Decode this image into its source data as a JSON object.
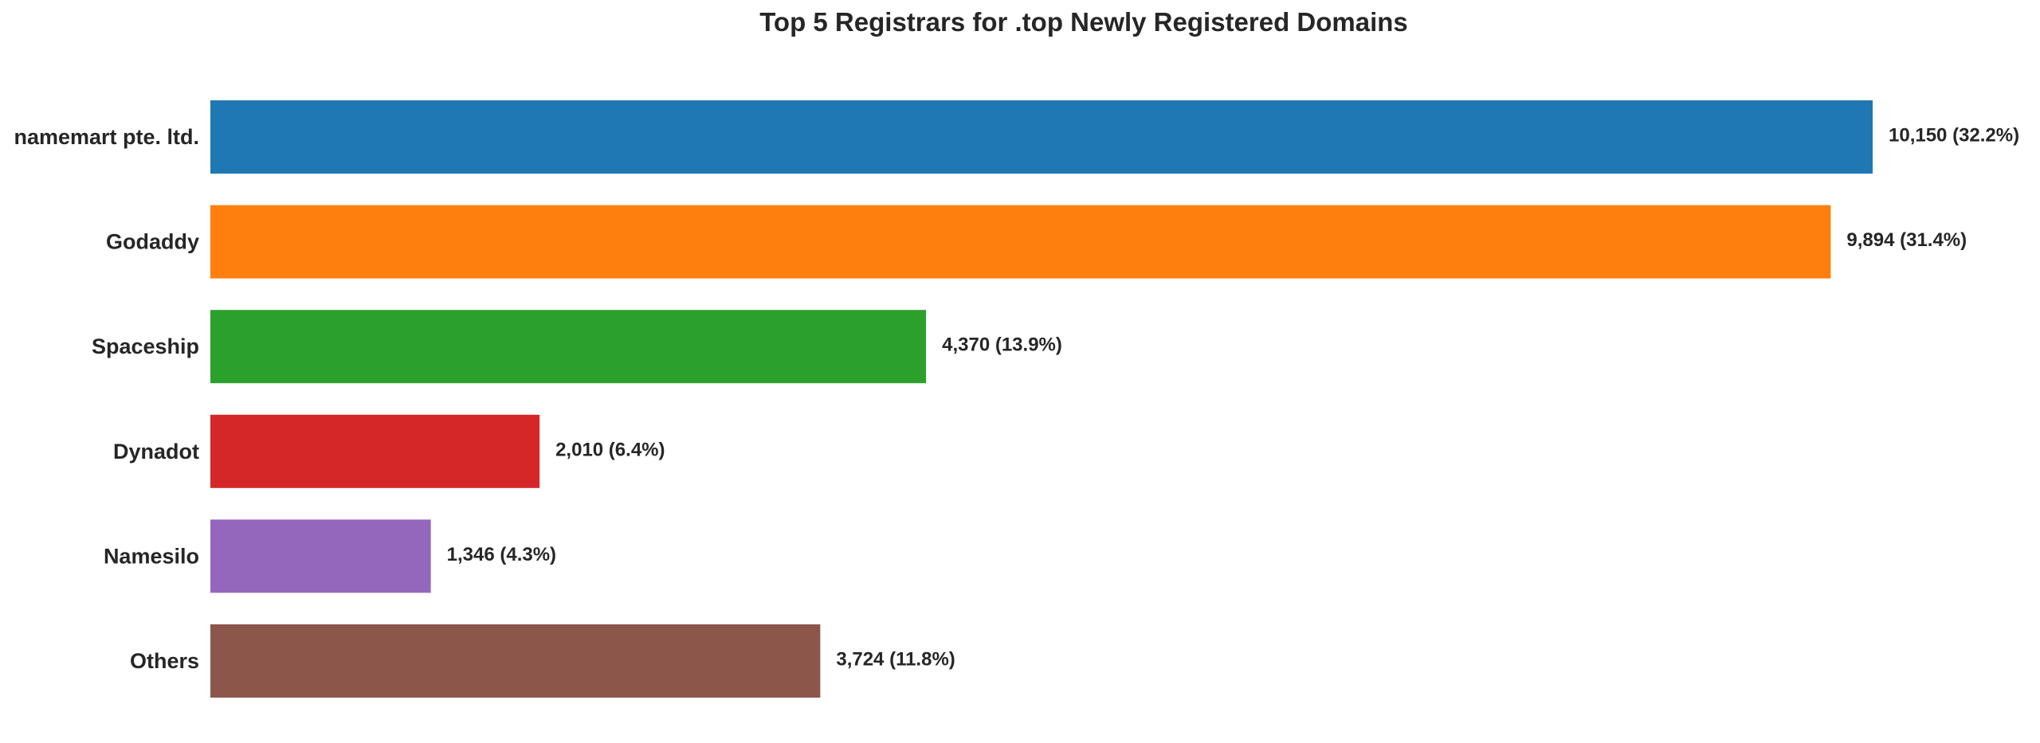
{
  "chart_data": {
    "type": "bar",
    "orientation": "horizontal",
    "title": "Top 5 Registrars for .top Newly Registered Domains",
    "xlabel": "",
    "ylabel": "",
    "categories": [
      "namemart pte. ltd.",
      "Godaddy",
      "Spaceship",
      "Dynadot",
      "Namesilo",
      "Others"
    ],
    "values": [
      10150,
      9894,
      4370,
      2010,
      1346,
      3724
    ],
    "percentages": [
      32.2,
      31.4,
      13.9,
      6.4,
      4.3,
      11.8
    ],
    "data_labels": [
      "10,150 (32.2%)",
      "9,894 (31.4%)",
      "4,370 (13.9%)",
      "2,010 (6.4%)",
      "1,346 (4.3%)",
      "3,724 (11.8%)"
    ],
    "colors": [
      "#1f77b4",
      "#ff7f0e",
      "#2ca02c",
      "#d62728",
      "#9467bd",
      "#8c564b"
    ],
    "xlim": [
      0,
      10150
    ],
    "grid": false,
    "legend": "none"
  }
}
